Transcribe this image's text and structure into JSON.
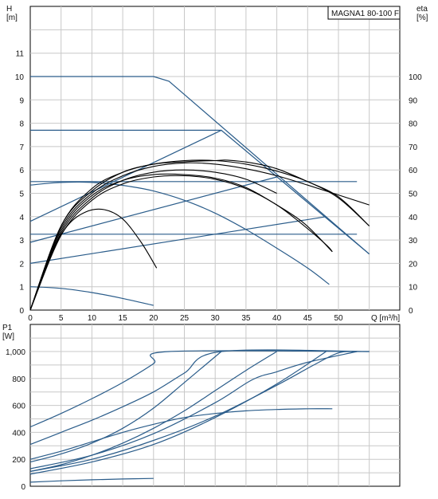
{
  "model_label": "MAGNA1 80-100 F",
  "chart_data": [
    {
      "type": "line",
      "name": "QH",
      "xlabel": "Q [m³/h]",
      "ylabel": "H\n[m]",
      "y2label": "eta\n[%]",
      "xlim": [
        0,
        55
      ],
      "ylim": [
        0,
        12
      ],
      "y2lim": [
        0,
        120
      ],
      "grid": true,
      "x_ticks": [
        "0",
        "5",
        "10",
        "15",
        "20",
        "25",
        "30",
        "35",
        "40",
        "45",
        "50"
      ],
      "y_ticks": [
        "0",
        "1",
        "2",
        "3",
        "4",
        "5",
        "6",
        "7",
        "8",
        "9",
        "10",
        "11"
      ],
      "y2_ticks": [
        "0",
        "10",
        "20",
        "30",
        "40",
        "50",
        "60",
        "70",
        "80",
        "90",
        "100"
      ],
      "colors": {
        "qh": "#2a5c8a",
        "eta": "#000000",
        "grid": "#c8c8c8",
        "axis": "#000000"
      },
      "qh_curves": [
        {
          "x": [
            0,
            20,
            22.5,
            55
          ],
          "y": [
            10,
            10,
            9.8,
            2.4
          ]
        },
        {
          "x": [
            0,
            31,
            55
          ],
          "y": [
            7.7,
            7.7,
            2.4
          ]
        },
        {
          "x": [
            0,
            31
          ],
          "y": [
            3.8,
            7.7
          ]
        },
        {
          "x": [
            0,
            40
          ],
          "y": [
            2.9,
            5.7
          ]
        },
        {
          "x": [
            0,
            48
          ],
          "y": [
            2.0,
            4.0
          ]
        },
        {
          "x": [
            0,
            4,
            8,
            12,
            16,
            20,
            25,
            30,
            35,
            40,
            45,
            48.5
          ],
          "y": [
            5.35,
            5.45,
            5.48,
            5.43,
            5.3,
            5.1,
            4.7,
            4.15,
            3.45,
            2.65,
            1.8,
            1.1
          ]
        },
        {
          "x": [
            0,
            53
          ],
          "y": [
            5.5,
            5.5
          ]
        },
        {
          "x": [
            0,
            53
          ],
          "y": [
            3.25,
            3.25
          ]
        },
        {
          "x": [
            0,
            5,
            10,
            15,
            20
          ],
          "y": [
            1.0,
            0.93,
            0.75,
            0.5,
            0.2
          ]
        }
      ],
      "eta_curves": [
        {
          "x": [
            0,
            3,
            6,
            9,
            12,
            15,
            18,
            20.5
          ],
          "y": [
            0,
            22,
            36,
            42,
            43,
            39,
            29,
            18
          ]
        },
        {
          "x": [
            0,
            5,
            10,
            15,
            20,
            25,
            30,
            35,
            40,
            44.5,
            49
          ],
          "y": [
            0,
            34,
            49,
            55.5,
            58,
            58,
            56.5,
            52.5,
            45,
            37,
            25
          ]
        },
        {
          "x": [
            0,
            5,
            10,
            15,
            20,
            25,
            30,
            35,
            40,
            45,
            55
          ],
          "y": [
            0,
            35,
            50,
            57.5,
            61.5,
            63,
            62.5,
            60.5,
            57.5,
            53.5,
            45
          ]
        },
        {
          "x": [
            0,
            5,
            10,
            15,
            20,
            25,
            30,
            35,
            40,
            45,
            50,
            55
          ],
          "y": [
            0,
            36,
            51,
            59,
            62.5,
            64,
            64,
            62.5,
            59.5,
            55,
            48,
            36
          ]
        },
        {
          "x": [
            0,
            5,
            10,
            15,
            20,
            25,
            30,
            32,
            36,
            40,
            45,
            50,
            55
          ],
          "y": [
            0,
            36,
            52,
            59,
            62.5,
            63.5,
            64,
            64.2,
            63,
            60.5,
            55,
            48.5,
            36
          ]
        },
        {
          "x": [
            0,
            5,
            10,
            15,
            20,
            25,
            30,
            35,
            40,
            44,
            48,
            49
          ],
          "y": [
            0,
            32,
            47,
            54,
            57,
            57.5,
            56,
            52,
            45,
            37,
            28,
            25
          ]
        },
        {
          "x": [
            0,
            5,
            10,
            15,
            20,
            25,
            30,
            35,
            40
          ],
          "y": [
            0,
            33,
            48,
            55.5,
            59,
            60,
            59,
            56,
            50
          ]
        }
      ]
    },
    {
      "type": "line",
      "name": "P1",
      "xlabel": "",
      "ylabel": "P1\n[W]",
      "xlim": [
        0,
        55
      ],
      "ylim": [
        0,
        1100
      ],
      "grid": true,
      "y_ticks": [
        "0",
        "200",
        "400",
        "600",
        "800",
        "1,000"
      ],
      "y_tick_values": [
        0,
        200,
        400,
        600,
        800,
        1000
      ],
      "colors": {
        "p1": "#2a5c8a"
      },
      "p1_curves": [
        {
          "x": [
            0,
            5,
            10,
            15,
            20,
            22.5,
            55
          ],
          "y": [
            440,
            540,
            650,
            770,
            910,
            1000,
            1000
          ]
        },
        {
          "x": [
            0,
            5,
            10,
            15,
            20,
            25,
            31,
            55
          ],
          "y": [
            310,
            400,
            490,
            590,
            700,
            840,
            1000,
            1000
          ]
        },
        {
          "x": [
            0,
            5,
            10,
            15,
            20,
            25,
            31
          ],
          "y": [
            180,
            240,
            320,
            430,
            580,
            770,
            1000
          ]
        },
        {
          "x": [
            0,
            5,
            10,
            15,
            20,
            25,
            30,
            35,
            40
          ],
          "y": [
            110,
            160,
            230,
            320,
            430,
            560,
            710,
            860,
            1000
          ]
        },
        {
          "x": [
            0,
            10,
            20,
            30,
            40,
            48
          ],
          "y": [
            90,
            180,
            310,
            510,
            760,
            1000
          ]
        },
        {
          "x": [
            0,
            5,
            10,
            15,
            20,
            25,
            30,
            35,
            40,
            45,
            49
          ],
          "y": [
            200,
            260,
            330,
            400,
            460,
            510,
            540,
            560,
            570,
            575,
            575
          ]
        },
        {
          "x": [
            0,
            10,
            20,
            30,
            36,
            40,
            45,
            53
          ],
          "y": [
            130,
            230,
            390,
            620,
            790,
            850,
            920,
            1000
          ]
        },
        {
          "x": [
            0,
            10,
            20,
            30,
            40,
            46,
            50,
            53
          ],
          "y": [
            110,
            200,
            340,
            520,
            750,
            900,
            990,
            1000
          ]
        },
        {
          "x": [
            0,
            5,
            10,
            15,
            20
          ],
          "y": [
            30,
            40,
            48,
            54,
            58
          ]
        }
      ]
    }
  ]
}
